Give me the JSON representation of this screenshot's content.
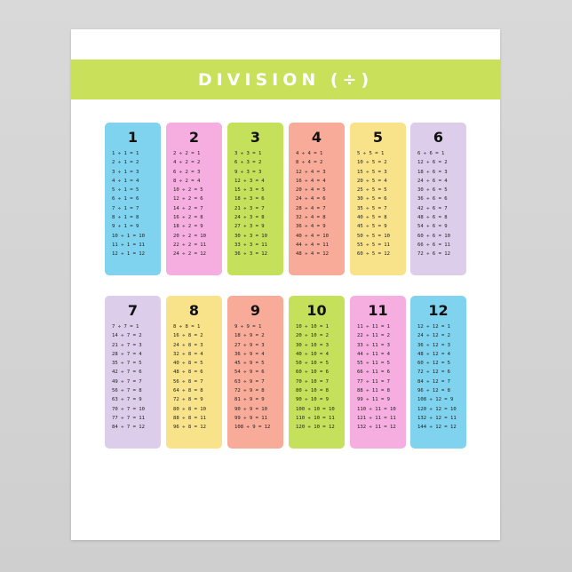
{
  "title": "DIVISION (÷)",
  "colors": {
    "band": "#c8e05a",
    "blue": "#7fd3ef",
    "pink": "#f6aee0",
    "green": "#c5e05a",
    "salmon": "#f7ab98",
    "yellow": "#f8e38a",
    "lavender": "#dccdea"
  },
  "cards": [
    {
      "number": "1",
      "color": "#7fd3ef",
      "lines": [
        "1 ÷ 1 = 1",
        "2 ÷ 1 = 2",
        "3 ÷ 1 = 3",
        "4 ÷ 1 = 4",
        "5 ÷ 1 = 5",
        "6 ÷ 1 = 6",
        "7 ÷ 1 = 7",
        "8 ÷ 1 = 8",
        "9 ÷ 1 = 9",
        "10 ÷ 1 = 10",
        "11 ÷ 1 = 11",
        "12 ÷ 1 = 12"
      ]
    },
    {
      "number": "2",
      "color": "#f6aee0",
      "lines": [
        "2 ÷ 2 = 1",
        "4 ÷ 2 = 2",
        "6 ÷ 2 = 3",
        "8 ÷ 2 = 4",
        "10 ÷ 2 = 5",
        "12 ÷ 2 = 6",
        "14 ÷ 2 = 7",
        "16 ÷ 2 = 8",
        "18 ÷ 2 = 9",
        "20 ÷ 2 = 10",
        "22 ÷ 2 = 11",
        "24 ÷ 2 = 12"
      ]
    },
    {
      "number": "3",
      "color": "#c5e05a",
      "lines": [
        "3 ÷ 3 = 1",
        "6 ÷ 3 = 2",
        "9 ÷ 3 = 3",
        "12 ÷ 3 = 4",
        "15 ÷ 3 = 5",
        "18 ÷ 3 = 6",
        "21 ÷ 3 = 7",
        "24 ÷ 3 = 8",
        "27 ÷ 3 = 9",
        "30 ÷ 3 = 10",
        "33 ÷ 3 = 11",
        "36 ÷ 3 = 12"
      ]
    },
    {
      "number": "4",
      "color": "#f7ab98",
      "lines": [
        "4 ÷ 4 = 1",
        "8 ÷ 4 = 2",
        "12 ÷ 4 = 3",
        "16 ÷ 4 = 4",
        "20 ÷ 4 = 5",
        "24 ÷ 4 = 6",
        "28 ÷ 4 = 7",
        "32 ÷ 4 = 8",
        "36 ÷ 4 = 9",
        "40 ÷ 4 = 10",
        "44 ÷ 4 = 11",
        "48 ÷ 4 = 12"
      ]
    },
    {
      "number": "5",
      "color": "#f8e38a",
      "lines": [
        "5 ÷ 5 = 1",
        "10 ÷ 5 = 2",
        "15 ÷ 5 = 3",
        "20 ÷ 5 = 4",
        "25 ÷ 5 = 5",
        "30 ÷ 5 = 6",
        "35 ÷ 5 = 7",
        "40 ÷ 5 = 8",
        "45 ÷ 5 = 9",
        "50 ÷ 5 = 10",
        "55 ÷ 5 = 11",
        "60 ÷ 5 = 12"
      ]
    },
    {
      "number": "6",
      "color": "#dccdea",
      "lines": [
        "6 ÷ 6 = 1",
        "12 ÷ 6 = 2",
        "18 ÷ 6 = 3",
        "24 ÷ 6 = 4",
        "30 ÷ 6 = 5",
        "36 ÷ 6 = 6",
        "42 ÷ 6 = 7",
        "48 ÷ 6 = 8",
        "54 ÷ 6 = 9",
        "60 ÷ 6 = 10",
        "66 ÷ 6 = 11",
        "72 ÷ 6 = 12"
      ]
    },
    {
      "number": "7",
      "color": "#dccdea",
      "lines": [
        "7 ÷ 7 = 1",
        "14 ÷ 7 = 2",
        "21 ÷ 7 = 3",
        "28 ÷ 7 = 4",
        "35 ÷ 7 = 5",
        "42 ÷ 7 = 6",
        "49 ÷ 7 = 7",
        "56 ÷ 7 = 8",
        "63 ÷ 7 = 9",
        "70 ÷ 7 = 10",
        "77 ÷ 7 = 11",
        "84 ÷ 7 = 12"
      ]
    },
    {
      "number": "8",
      "color": "#f8e38a",
      "lines": [
        "8 ÷ 8 = 1",
        "16 ÷ 8 = 2",
        "24 ÷ 8 = 3",
        "32 ÷ 8 = 4",
        "40 ÷ 8 = 5",
        "48 ÷ 8 = 6",
        "56 ÷ 8 = 7",
        "64 ÷ 8 = 8",
        "72 ÷ 8 = 9",
        "80 ÷ 8 = 10",
        "88 ÷ 8 = 11",
        "96 ÷ 8 = 12"
      ]
    },
    {
      "number": "9",
      "color": "#f7ab98",
      "lines": [
        "9 ÷ 9 = 1",
        "18 ÷ 9 = 2",
        "27 ÷ 9 = 3",
        "36 ÷ 9 = 4",
        "45 ÷ 9 = 5",
        "54 ÷ 9 = 6",
        "63 ÷ 9 = 7",
        "72 ÷ 9 = 8",
        "81 ÷ 9 = 9",
        "90 ÷ 9 = 10",
        "99 ÷ 9 = 11",
        "108 ÷ 9 = 12"
      ]
    },
    {
      "number": "10",
      "color": "#c5e05a",
      "lines": [
        "10 ÷ 10 = 1",
        "20 ÷ 10 = 2",
        "30 ÷ 10 = 3",
        "40 ÷ 10 = 4",
        "50 ÷ 10 = 5",
        "60 ÷ 10 = 6",
        "70 ÷ 10 = 7",
        "80 ÷ 10 = 8",
        "90 ÷ 10 = 9",
        "100 ÷ 10 = 10",
        "110 ÷ 10 = 11",
        "120 ÷ 10 = 12"
      ]
    },
    {
      "number": "11",
      "color": "#f6aee0",
      "lines": [
        "11 ÷ 11 = 1",
        "22 ÷ 11 = 2",
        "33 ÷ 11 = 3",
        "44 ÷ 11 = 4",
        "55 ÷ 11 = 5",
        "66 ÷ 11 = 6",
        "77 ÷ 11 = 7",
        "88 ÷ 11 = 8",
        "99 ÷ 11 = 9",
        "110 ÷ 11 = 10",
        "121 ÷ 11 = 11",
        "132 ÷ 11 = 12"
      ]
    },
    {
      "number": "12",
      "color": "#7fd3ef",
      "lines": [
        "12 ÷ 12 = 1",
        "24 ÷ 12 = 2",
        "36 ÷ 12 = 3",
        "48 ÷ 12 = 4",
        "60 ÷ 12 = 5",
        "72 ÷ 12 = 6",
        "84 ÷ 12 = 7",
        "96 ÷ 12 = 8",
        "108 ÷ 12 = 9",
        "120 ÷ 12 = 10",
        "132 ÷ 12 = 11",
        "144 ÷ 12 = 12"
      ]
    }
  ]
}
